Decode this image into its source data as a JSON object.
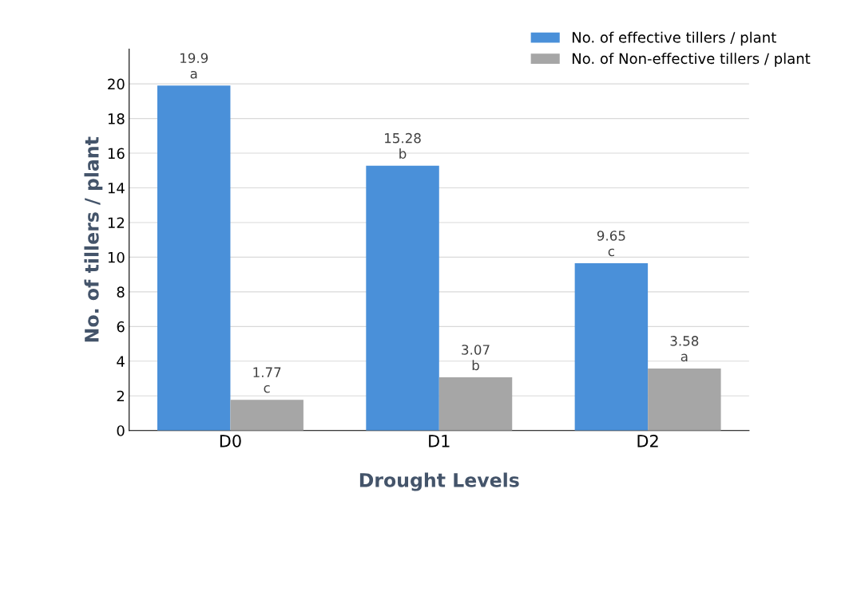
{
  "chart_data": {
    "type": "bar",
    "xlabel": "Drought Levels",
    "ylabel": "No. of tillers / plant",
    "categories": [
      "D0",
      "D1",
      "D2"
    ],
    "series": [
      {
        "name": "No. of effective tillers / plant",
        "color": "#4a90d9",
        "values": [
          19.9,
          15.28,
          9.65
        ]
      },
      {
        "name": "No. of Non-effective tillers / plant",
        "color": "#a6a6a6",
        "values": [
          1.77,
          3.07,
          3.58
        ]
      }
    ],
    "annotations": [
      {
        "text": "a",
        "x": "D0",
        "y": 19.9
      },
      {
        "text": "b",
        "x": "D1",
        "y": 15.28
      },
      {
        "text": "c",
        "x": "D2",
        "y": 9.65
      },
      {
        "text": "c",
        "x": "D0",
        "y": 1.77
      },
      {
        "text": "b",
        "x": "D1",
        "y": 3.07
      },
      {
        "text": "a",
        "x": "D2",
        "y": 3.58
      }
    ],
    "ylim": [
      0,
      22
    ],
    "yticks": [
      0,
      2,
      4,
      6,
      8,
      10,
      12,
      14,
      16,
      18,
      20
    ],
    "grid": "y",
    "legend": "top right",
    "data_labels": true
  }
}
